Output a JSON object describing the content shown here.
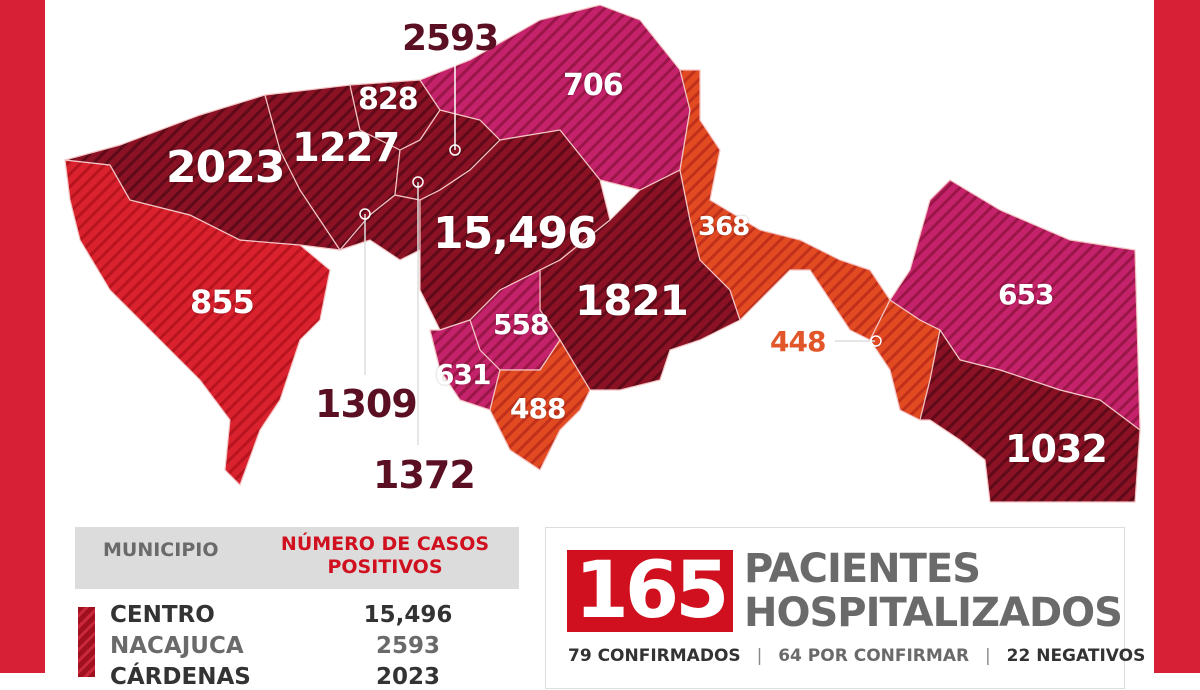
{
  "colors": {
    "frame": "#d71f35",
    "dark": "#8a1224",
    "red": "#d9222e",
    "magenta": "#c4226a",
    "orange": "#e24a22",
    "accent": "#d0101e",
    "gray": "#6a6a6a"
  },
  "map": {
    "labels": [
      "2593",
      "828",
      "706",
      "1227",
      "2023",
      "15,496",
      "368",
      "855",
      "1821",
      "558",
      "653",
      "448",
      "631",
      "1309",
      "488",
      "1032",
      "1372"
    ]
  },
  "table": {
    "header_municipio": "MUNICIPIO",
    "header_casos_1": "NÚMERO DE CASOS",
    "header_casos_2": "POSITIVOS",
    "rows": [
      {
        "name": "CENTRO",
        "value": "15,496"
      },
      {
        "name": "NACAJUCA",
        "value": "2593"
      },
      {
        "name": "CÁRDENAS",
        "value": "2023"
      }
    ]
  },
  "hospital": {
    "count": "165",
    "title_1": "PACIENTES",
    "title_2": "HOSPITALIZADOS",
    "confirmed": "79 CONFIRMADOS",
    "pending": "64 POR CONFIRMAR",
    "negative": "22 NEGATIVOS",
    "separator": "|"
  }
}
